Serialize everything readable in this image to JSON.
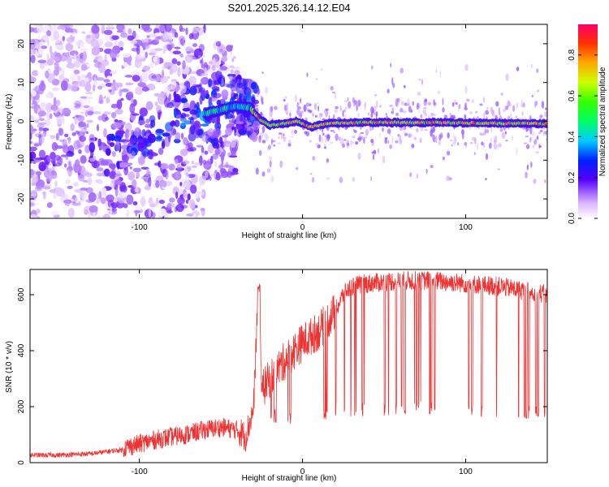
{
  "page": {
    "title": "S201.2025.326.14.12.E04"
  },
  "chart_data": [
    {
      "type": "heatmap",
      "name": "spectrogram",
      "xlabel": "Height of straight line (km)",
      "ylabel": "Frequency (Hz)",
      "xlim": [
        -167,
        150
      ],
      "ylim": [
        -25,
        25
      ],
      "xticks": [
        -100,
        0,
        100
      ],
      "yticks": [
        -20,
        -10,
        0,
        10,
        20
      ],
      "colorbar": {
        "label": "Normalized spectral amplitude",
        "range": [
          0.0,
          0.95
        ],
        "ticks": [
          0.0,
          0.2,
          0.4,
          0.6,
          0.8
        ]
      },
      "ridge": [
        {
          "x": -120,
          "y": -8
        },
        {
          "x": -100,
          "y": -6
        },
        {
          "x": -80,
          "y": -2
        },
        {
          "x": -60,
          "y": 2
        },
        {
          "x": -50,
          "y": 3
        },
        {
          "x": -40,
          "y": 4
        },
        {
          "x": -32,
          "y": 3.5
        },
        {
          "x": -26,
          "y": 0.5
        },
        {
          "x": -20,
          "y": -1
        },
        {
          "x": -10,
          "y": -0.5
        },
        {
          "x": -3,
          "y": 0
        },
        {
          "x": 5,
          "y": -1.5
        },
        {
          "x": 15,
          "y": -0.5
        },
        {
          "x": 40,
          "y": -0.3
        },
        {
          "x": 80,
          "y": -0.3
        },
        {
          "x": 120,
          "y": -0.5
        },
        {
          "x": 150,
          "y": -0.6
        }
      ]
    },
    {
      "type": "line",
      "name": "snr",
      "xlabel": "Height of straight line (km)",
      "ylabel": "SNR (10 * v/v)",
      "xlim": [
        -167,
        150
      ],
      "ylim": [
        0,
        690
      ],
      "xticks": [
        -100,
        0,
        100
      ],
      "yticks": [
        0,
        200,
        400,
        600
      ],
      "color": "#ee3333",
      "series": [
        {
          "name": "SNR",
          "x": [
            -167,
            -150,
            -130,
            -110,
            -100,
            -90,
            -80,
            -70,
            -60,
            -50,
            -40,
            -35,
            -30,
            -27,
            -25,
            -20,
            -10,
            0,
            10,
            20,
            25,
            30,
            40,
            60,
            80,
            100,
            120,
            140,
            150
          ],
          "y": [
            25,
            25,
            30,
            45,
            60,
            75,
            85,
            95,
            110,
            120,
            110,
            80,
            180,
            640,
            260,
            300,
            370,
            430,
            470,
            540,
            600,
            630,
            640,
            650,
            650,
            640,
            630,
            610,
            600
          ]
        }
      ],
      "dropout_floor": [
        {
          "x": -22,
          "y": 170
        },
        {
          "x": 0,
          "y": 150
        },
        {
          "x": 20,
          "y": 190
        },
        {
          "x": 40,
          "y": 190
        },
        {
          "x": 60,
          "y": 195
        },
        {
          "x": 80,
          "y": 195
        },
        {
          "x": 100,
          "y": 190
        },
        {
          "x": 120,
          "y": 185
        },
        {
          "x": 150,
          "y": 180
        }
      ]
    }
  ]
}
